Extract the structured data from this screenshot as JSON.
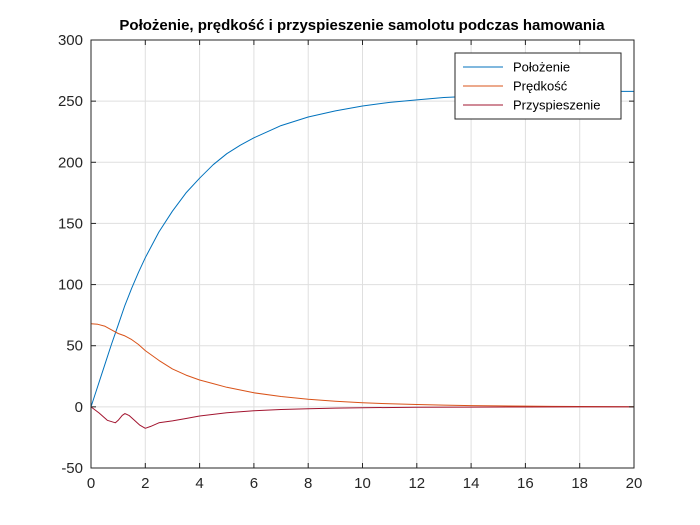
{
  "chart_data": {
    "type": "line",
    "title": "Położenie, prędkość i przyspieszenie samolotu podczas hamowania",
    "xlabel": "",
    "ylabel": "",
    "xlim": [
      0,
      20
    ],
    "ylim": [
      -50,
      300
    ],
    "xticks": [
      0,
      2,
      4,
      6,
      8,
      10,
      12,
      14,
      16,
      18,
      20
    ],
    "yticks": [
      -50,
      0,
      50,
      100,
      150,
      200,
      250,
      300
    ],
    "grid": true,
    "legend_position": "top-right",
    "series": [
      {
        "name": "Położenie",
        "color": "#0072BD",
        "x": [
          0,
          0.25,
          0.5,
          0.75,
          1,
          1.25,
          1.5,
          1.75,
          2,
          2.5,
          3,
          3.5,
          4,
          4.5,
          5,
          5.5,
          6,
          6.5,
          7,
          8,
          9,
          10,
          11,
          12,
          13,
          14,
          15,
          16,
          17,
          18,
          19,
          20
        ],
        "values": [
          0,
          17,
          34,
          51,
          67,
          83,
          97,
          110,
          122,
          143,
          160,
          175,
          187,
          198,
          207,
          214,
          220,
          225,
          230,
          237,
          242,
          246,
          249,
          251,
          253,
          254,
          255,
          256,
          257,
          257,
          258,
          258
        ]
      },
      {
        "name": "Prędkość",
        "color": "#D95319",
        "x": [
          0,
          0.25,
          0.5,
          0.75,
          1,
          1.25,
          1.5,
          1.75,
          2,
          2.5,
          3,
          3.5,
          4,
          4.5,
          5,
          6,
          7,
          8,
          9,
          10,
          11,
          12,
          13,
          14,
          15,
          16,
          17,
          18,
          19,
          20
        ],
        "values": [
          68,
          67.5,
          66,
          63,
          60,
          58,
          55,
          51,
          46,
          38,
          31,
          26,
          22,
          19,
          16,
          11.5,
          8.5,
          6.2,
          4.6,
          3.4,
          2.5,
          1.9,
          1.4,
          1.0,
          0.8,
          0.6,
          0.4,
          0.3,
          0.2,
          0.15
        ]
      },
      {
        "name": "Przyspieszenie",
        "color": "#A2142F",
        "x": [
          0,
          0.3,
          0.6,
          0.9,
          1.0,
          1.15,
          1.25,
          1.4,
          1.6,
          1.8,
          2.0,
          2.2,
          2.5,
          3.0,
          3.5,
          4.0,
          5.0,
          6.0,
          7.0,
          8.0,
          9.0,
          10.0,
          12.0,
          14.0,
          16.0,
          18.0,
          20.0
        ],
        "values": [
          0,
          -5,
          -11,
          -13,
          -11,
          -7,
          -5.5,
          -7,
          -11,
          -15,
          -17.5,
          -16,
          -13,
          -11.5,
          -9.5,
          -7.5,
          -4.8,
          -3.2,
          -2.2,
          -1.5,
          -1.0,
          -0.7,
          -0.4,
          -0.2,
          -0.1,
          -0.05,
          0
        ]
      }
    ]
  }
}
